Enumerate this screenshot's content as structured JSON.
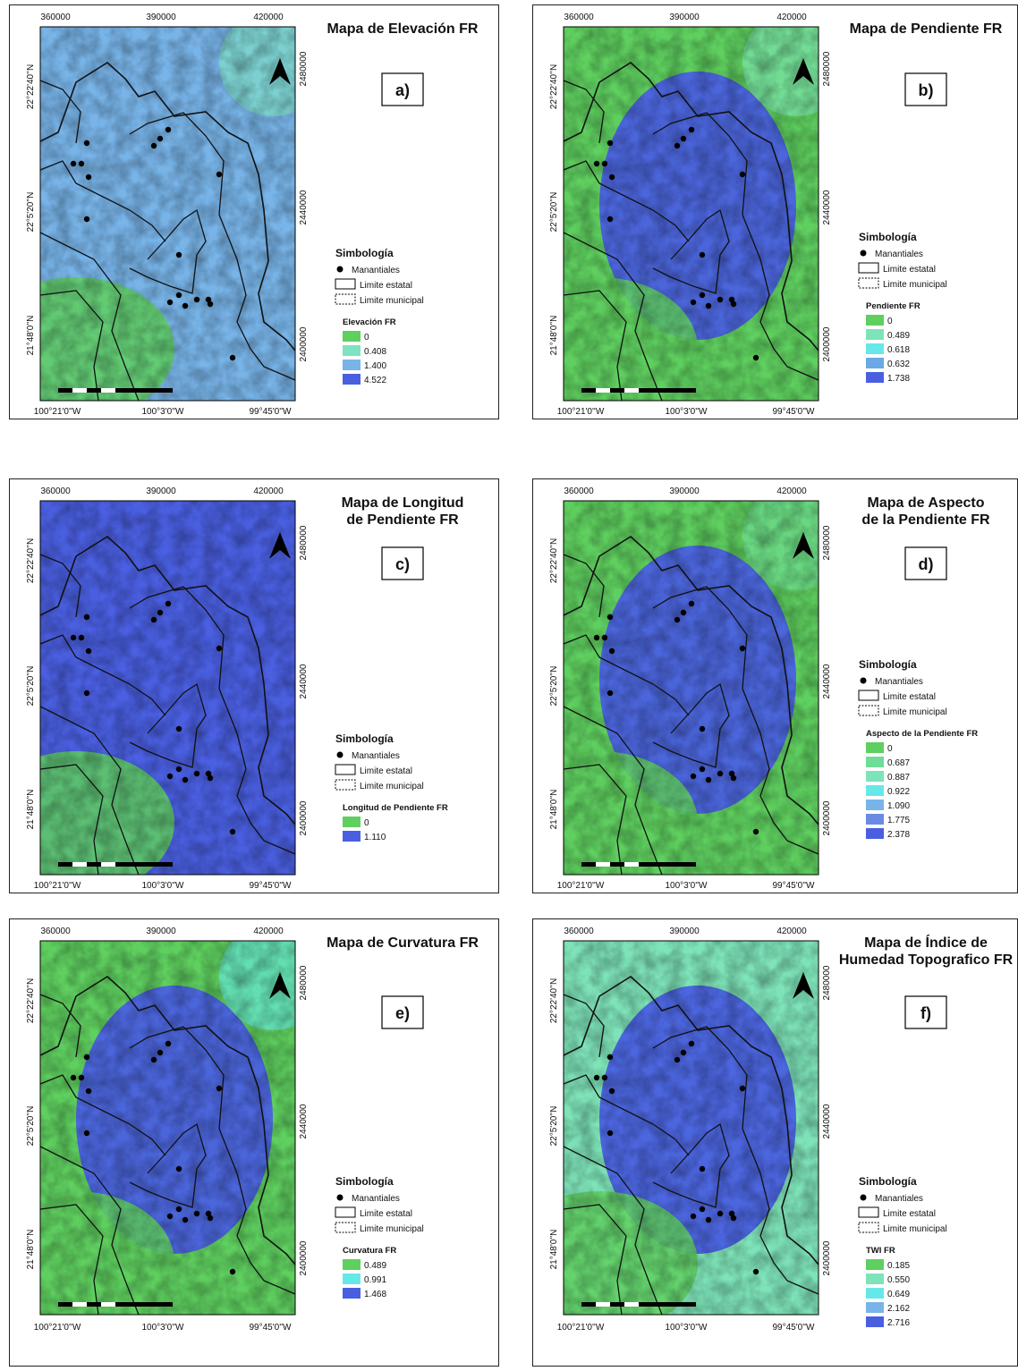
{
  "axes": {
    "top": [
      "360000",
      "390000",
      "420000"
    ],
    "right": [
      "2480000",
      "2440000",
      "2400000"
    ],
    "left": [
      "22°22'40''N",
      "22°5'20''N",
      "21°48'0''N"
    ],
    "bottom": [
      "100°21'0''W",
      "100°3'0''W",
      "99°45'0''W"
    ]
  },
  "panels": [
    {
      "title": [
        "Mapa de Elevación FR"
      ],
      "label": "a)",
      "legend_title": "Simbología",
      "legend_items": [
        "Manantiales",
        "Limite estatal",
        "Limite municipal"
      ],
      "class_title": "Elevación FR",
      "classes": [
        {
          "label": "0",
          "color": "#5fcf5f"
        },
        {
          "label": "0.408",
          "color": "#7ee3c0"
        },
        {
          "label": "1.400",
          "color": "#78b4e8"
        },
        {
          "label": "4.522",
          "color": "#4a5fe0"
        }
      ]
    },
    {
      "title": [
        "Mapa de Pendiente FR"
      ],
      "label": "b)",
      "legend_title": "Simbología",
      "legend_items": [
        "Manantiales",
        "Limite estatal",
        "Limite municipal"
      ],
      "class_title": "Pendiente FR",
      "classes": [
        {
          "label": "0",
          "color": "#5fcf5f"
        },
        {
          "label": "0.489",
          "color": "#7ee3b8"
        },
        {
          "label": "0.618",
          "color": "#66e8e8"
        },
        {
          "label": "0.632",
          "color": "#6aa8e6"
        },
        {
          "label": "1.738",
          "color": "#4a5fe0"
        }
      ]
    },
    {
      "title": [
        "Mapa de Longitud",
        "de Pendiente FR"
      ],
      "label": "c)",
      "legend_title": "Simbología",
      "legend_items": [
        "Manantiales",
        "Limite estatal",
        "Limite municipal"
      ],
      "class_title": "Longitud de Pendiente FR",
      "classes": [
        {
          "label": "0",
          "color": "#5fcf5f"
        },
        {
          "label": "1.110",
          "color": "#4a5fe0"
        }
      ]
    },
    {
      "title": [
        "Mapa de Aspecto",
        "de la Pendiente FR"
      ],
      "label": "d)",
      "legend_title": "Simbología",
      "legend_items": [
        "Manantiales",
        "Limite estatal",
        "Limite municipal"
      ],
      "class_title": "Aspecto de la Pendiente FR",
      "classes": [
        {
          "label": "0",
          "color": "#5fcf5f"
        },
        {
          "label": "0.687",
          "color": "#6fdc98"
        },
        {
          "label": "0.887",
          "color": "#7ee3b8"
        },
        {
          "label": "0.922",
          "color": "#66e8e8"
        },
        {
          "label": "1.090",
          "color": "#78b4e8"
        },
        {
          "label": "1.775",
          "color": "#6a8ae6"
        },
        {
          "label": "2.378",
          "color": "#4a5fe0"
        }
      ]
    },
    {
      "title": [
        "Mapa de Curvatura FR"
      ],
      "label": "e)",
      "legend_title": "Simbología",
      "legend_items": [
        "Manantiales",
        "Limite estatal",
        "Limite municipal"
      ],
      "class_title": "Curvatura FR",
      "classes": [
        {
          "label": "0.489",
          "color": "#5fcf5f"
        },
        {
          "label": "0.991",
          "color": "#66e8e8"
        },
        {
          "label": "1.468",
          "color": "#4a5fe0"
        }
      ]
    },
    {
      "title": [
        "Mapa de Índice de",
        "Humedad Topografico FR"
      ],
      "label": "f)",
      "legend_title": "Simbología",
      "legend_items": [
        "Manantiales",
        "Limite estatal",
        "Limite municipal"
      ],
      "class_title": "TWI FR",
      "classes": [
        {
          "label": "0.185",
          "color": "#5fcf5f"
        },
        {
          "label": "0.550",
          "color": "#7ee3b8"
        },
        {
          "label": "0.649",
          "color": "#66e8e8"
        },
        {
          "label": "2.162",
          "color": "#78b4e8"
        },
        {
          "label": "2.716",
          "color": "#4a5fe0"
        }
      ]
    }
  ]
}
